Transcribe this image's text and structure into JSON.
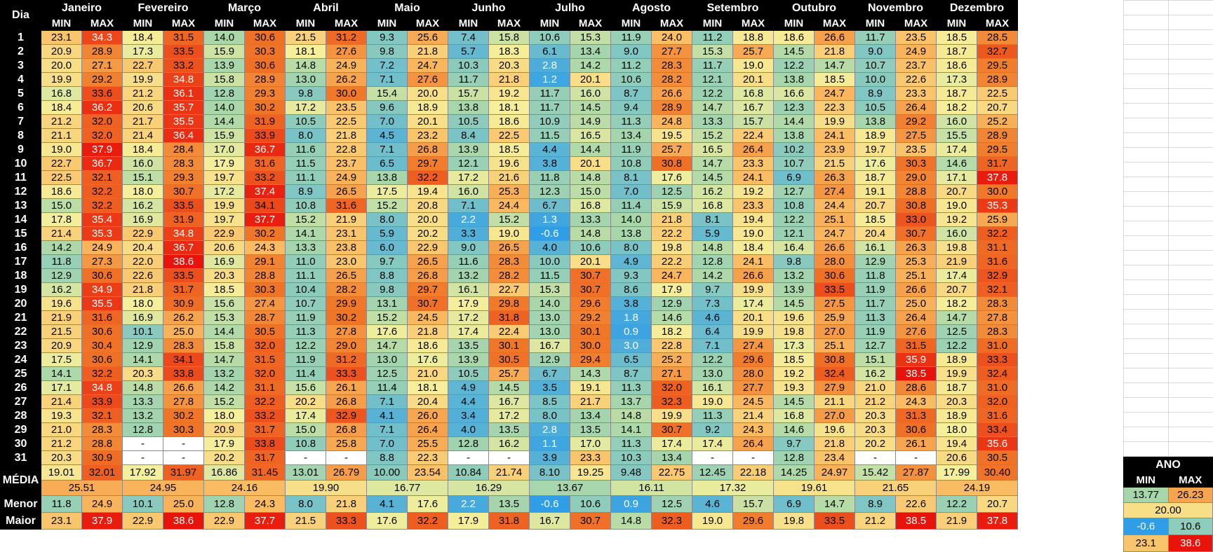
{
  "header": {
    "dia_label": "Dia",
    "months": [
      "Janeiro",
      "Fevereiro",
      "Março",
      "Abril",
      "Maio",
      "Junho",
      "Julho",
      "Agosto",
      "Setembro",
      "Outubro",
      "Novembro",
      "Dezembro"
    ],
    "min_label": "MIN",
    "max_label": "MAX"
  },
  "days": [
    "1",
    "2",
    "3",
    "4",
    "5",
    "6",
    "7",
    "8",
    "9",
    "10",
    "11",
    "12",
    "13",
    "14",
    "15",
    "16",
    "17",
    "18",
    "19",
    "20",
    "21",
    "22",
    "23",
    "24",
    "25",
    "26",
    "27",
    "28",
    "29",
    "30",
    "31"
  ],
  "rows": [
    [
      "23.1",
      "34.3",
      "18.4",
      "31.5",
      "14.0",
      "30.6",
      "21.5",
      "31.2",
      "9.3",
      "25.6",
      "7.4",
      "15.8",
      "10.6",
      "15.3",
      "11.9",
      "24.0",
      "11.2",
      "18.8",
      "18.6",
      "26.6",
      "11.7",
      "23.5",
      "18.5",
      "28.5"
    ],
    [
      "20.9",
      "28.9",
      "17.3",
      "33.5",
      "15.9",
      "30.3",
      "18.1",
      "27.6",
      "9.8",
      "21.8",
      "5.7",
      "18.3",
      "6.1",
      "13.4",
      "9.0",
      "27.7",
      "15.3",
      "25.7",
      "14.5",
      "21.8",
      "9.0",
      "24.9",
      "18.7",
      "32.7"
    ],
    [
      "20.0",
      "27.1",
      "22.7",
      "33.2",
      "13.9",
      "30.6",
      "14.8",
      "24.9",
      "7.2",
      "24.7",
      "10.3",
      "20.3",
      "2.8",
      "14.2",
      "11.2",
      "28.3",
      "11.7",
      "19.0",
      "12.2",
      "14.7",
      "10.7",
      "23.7",
      "18.6",
      "29.5"
    ],
    [
      "19.9",
      "29.2",
      "19.9",
      "34.8",
      "15.8",
      "28.9",
      "13.0",
      "26.2",
      "7.1",
      "27.6",
      "11.7",
      "21.8",
      "1.2",
      "20.1",
      "10.6",
      "28.2",
      "12.1",
      "20.1",
      "13.8",
      "18.5",
      "10.0",
      "22.6",
      "17.3",
      "28.9"
    ],
    [
      "16.8",
      "33.6",
      "21.2",
      "36.1",
      "12.8",
      "29.3",
      "9.8",
      "30.0",
      "15.4",
      "20.0",
      "15.7",
      "19.2",
      "11.7",
      "16.0",
      "8.7",
      "26.6",
      "12.2",
      "16.8",
      "16.6",
      "24.7",
      "8.9",
      "23.3",
      "18.7",
      "22.5"
    ],
    [
      "18.4",
      "36.2",
      "20.6",
      "35.7",
      "14.0",
      "30.2",
      "17.2",
      "23.5",
      "9.6",
      "18.9",
      "13.8",
      "18.1",
      "11.7",
      "14.5",
      "9.4",
      "28.9",
      "14.7",
      "16.7",
      "12.3",
      "22.3",
      "10.5",
      "26.4",
      "18.2",
      "20.7"
    ],
    [
      "21.2",
      "32.0",
      "21.7",
      "35.5",
      "14.4",
      "31.9",
      "10.5",
      "22.5",
      "7.0",
      "20.1",
      "10.5",
      "18.6",
      "10.9",
      "14.9",
      "11.3",
      "24.8",
      "13.3",
      "15.7",
      "14.4",
      "19.9",
      "13.8",
      "29.2",
      "16.0",
      "25.2"
    ],
    [
      "21.1",
      "32.0",
      "21.4",
      "36.4",
      "15.9",
      "33.9",
      "8.0",
      "21.8",
      "4.5",
      "23.2",
      "8.4",
      "22.5",
      "11.5",
      "16.5",
      "13.4",
      "19.5",
      "15.2",
      "22.4",
      "13.8",
      "24.1",
      "18.9",
      "27.5",
      "15.5",
      "28.9"
    ],
    [
      "19.0",
      "37.9",
      "18.4",
      "28.4",
      "17.0",
      "36.7",
      "11.6",
      "22.8",
      "7.1",
      "26.8",
      "13.9",
      "18.5",
      "4.4",
      "14.4",
      "11.9",
      "25.7",
      "16.5",
      "26.4",
      "10.2",
      "23.9",
      "19.7",
      "23.5",
      "17.4",
      "29.5"
    ],
    [
      "22.7",
      "36.7",
      "16.0",
      "28.3",
      "17.9",
      "31.6",
      "11.5",
      "23.7",
      "6.5",
      "29.7",
      "12.1",
      "19.6",
      "3.8",
      "20.1",
      "10.8",
      "30.8",
      "14.7",
      "23.3",
      "10.7",
      "21.5",
      "17.6",
      "30.3",
      "14.6",
      "31.7"
    ],
    [
      "22.5",
      "32.1",
      "15.1",
      "29.3",
      "19.7",
      "33.2",
      "11.1",
      "24.9",
      "13.8",
      "32.2",
      "17.2",
      "21.6",
      "11.8",
      "14.8",
      "8.1",
      "17.6",
      "14.5",
      "24.1",
      "6.9",
      "26.3",
      "18.7",
      "29.0",
      "17.1",
      "37.8"
    ],
    [
      "18.6",
      "32.2",
      "18.0",
      "30.7",
      "17.2",
      "37.4",
      "8.9",
      "26.5",
      "17.5",
      "19.4",
      "16.0",
      "25.3",
      "12.3",
      "15.0",
      "7.0",
      "12.5",
      "16.2",
      "19.2",
      "12.7",
      "27.4",
      "19.1",
      "28.8",
      "20.7",
      "30.0"
    ],
    [
      "15.0",
      "32.2",
      "16.2",
      "33.5",
      "19.9",
      "34.1",
      "10.8",
      "31.6",
      "15.2",
      "20.8",
      "7.1",
      "24.4",
      "6.7",
      "16.8",
      "11.4",
      "15.9",
      "16.8",
      "23.3",
      "10.8",
      "24.4",
      "20.7",
      "30.8",
      "19.0",
      "35.3"
    ],
    [
      "17.8",
      "35.4",
      "16.9",
      "31.9",
      "19.7",
      "37.7",
      "15.2",
      "21.9",
      "8.0",
      "20.0",
      "2.2",
      "15.2",
      "1.3",
      "13.3",
      "14.0",
      "21.8",
      "8.1",
      "19.4",
      "12.2",
      "25.1",
      "18.5",
      "33.0",
      "19.2",
      "25.9"
    ],
    [
      "21.4",
      "35.3",
      "22.9",
      "34.8",
      "22.9",
      "30.2",
      "14.1",
      "23.1",
      "5.9",
      "20.2",
      "3.3",
      "19.0",
      "-0.6",
      "14.8",
      "13.8",
      "22.2",
      "5.9",
      "19.0",
      "12.1",
      "24.7",
      "20.4",
      "30.7",
      "16.0",
      "32.2"
    ],
    [
      "14.2",
      "24.9",
      "20.4",
      "36.7",
      "20.6",
      "24.3",
      "13.3",
      "23.8",
      "6.0",
      "22.9",
      "9.0",
      "26.5",
      "4.0",
      "10.6",
      "8.0",
      "19.8",
      "14.8",
      "18.4",
      "16.4",
      "26.6",
      "16.1",
      "26.3",
      "19.8",
      "31.1"
    ],
    [
      "11.8",
      "27.3",
      "22.0",
      "38.6",
      "16.9",
      "29.1",
      "11.0",
      "23.0",
      "9.7",
      "26.5",
      "11.6",
      "28.3",
      "10.0",
      "20.1",
      "4.9",
      "22.2",
      "12.8",
      "24.1",
      "9.8",
      "28.0",
      "12.9",
      "25.3",
      "21.9",
      "31.6"
    ],
    [
      "12.9",
      "30.6",
      "22.6",
      "33.5",
      "20.3",
      "28.8",
      "11.1",
      "26.5",
      "8.8",
      "26.8",
      "13.2",
      "28.2",
      "11.5",
      "30.7",
      "9.3",
      "24.7",
      "14.2",
      "26.6",
      "13.2",
      "30.6",
      "11.8",
      "25.1",
      "17.4",
      "32.9"
    ],
    [
      "16.2",
      "34.9",
      "21.8",
      "31.7",
      "18.5",
      "30.3",
      "10.4",
      "28.2",
      "9.8",
      "29.7",
      "16.1",
      "22.7",
      "15.3",
      "30.7",
      "8.6",
      "17.9",
      "9.7",
      "19.9",
      "13.9",
      "33.5",
      "11.9",
      "26.6",
      "20.7",
      "32.1"
    ],
    [
      "19.6",
      "35.5",
      "18.0",
      "30.9",
      "15.6",
      "27.4",
      "10.7",
      "29.9",
      "13.1",
      "30.7",
      "17.9",
      "29.8",
      "14.0",
      "29.6",
      "3.8",
      "12.9",
      "7.3",
      "17.4",
      "14.5",
      "27.5",
      "11.7",
      "25.0",
      "18.2",
      "28.3"
    ],
    [
      "21.9",
      "31.6",
      "16.9",
      "26.2",
      "15.3",
      "28.7",
      "11.9",
      "30.2",
      "15.2",
      "24.5",
      "17.2",
      "31.8",
      "13.0",
      "29.2",
      "1.8",
      "14.6",
      "4.6",
      "20.1",
      "19.6",
      "25.9",
      "11.3",
      "26.4",
      "14.7",
      "27.8"
    ],
    [
      "21.5",
      "30.6",
      "10.1",
      "25.0",
      "14.4",
      "30.5",
      "11.3",
      "27.8",
      "17.6",
      "21.8",
      "17.4",
      "22.4",
      "13.0",
      "30.1",
      "0.9",
      "18.2",
      "6.4",
      "19.9",
      "19.8",
      "27.0",
      "11.9",
      "27.6",
      "12.5",
      "28.3"
    ],
    [
      "20.9",
      "30.4",
      "12.9",
      "28.3",
      "15.8",
      "32.0",
      "12.2",
      "29.0",
      "14.7",
      "18.6",
      "13.5",
      "30.1",
      "16.7",
      "30.0",
      "3.0",
      "22.8",
      "7.1",
      "27.4",
      "17.3",
      "25.1",
      "12.7",
      "31.5",
      "12.2",
      "31.0"
    ],
    [
      "17.5",
      "30.6",
      "14.1",
      "34.1",
      "14.7",
      "31.5",
      "11.9",
      "31.2",
      "13.0",
      "17.6",
      "13.9",
      "30.5",
      "12.9",
      "29.4",
      "6.5",
      "25.2",
      "12.2",
      "29.6",
      "18.5",
      "30.8",
      "15.1",
      "35.9",
      "18.9",
      "33.3"
    ],
    [
      "14.1",
      "32.2",
      "20.3",
      "33.8",
      "13.2",
      "32.0",
      "11.4",
      "33.3",
      "12.5",
      "21.0",
      "10.5",
      "25.7",
      "6.7",
      "14.3",
      "8.7",
      "27.1",
      "13.0",
      "28.0",
      "19.2",
      "32.4",
      "16.2",
      "38.5",
      "19.9",
      "32.4"
    ],
    [
      "17.1",
      "34.8",
      "14.8",
      "26.6",
      "14.2",
      "31.1",
      "15.6",
      "26.1",
      "11.4",
      "18.1",
      "4.9",
      "14.5",
      "3.5",
      "19.1",
      "11.3",
      "32.0",
      "16.1",
      "27.7",
      "19.3",
      "27.9",
      "21.0",
      "28.6",
      "18.7",
      "31.0"
    ],
    [
      "21.4",
      "33.9",
      "13.3",
      "27.8",
      "15.2",
      "32.2",
      "20.2",
      "26.8",
      "7.1",
      "20.4",
      "4.4",
      "16.7",
      "8.5",
      "21.7",
      "13.7",
      "32.3",
      "19.0",
      "24.5",
      "14.5",
      "21.1",
      "21.2",
      "24.3",
      "20.3",
      "32.0"
    ],
    [
      "19.3",
      "32.1",
      "13.2",
      "30.2",
      "18.0",
      "33.2",
      "17.4",
      "32.9",
      "4.1",
      "26.0",
      "3.4",
      "17.2",
      "8.0",
      "13.4",
      "14.8",
      "19.9",
      "11.3",
      "21.4",
      "16.8",
      "27.0",
      "20.3",
      "31.3",
      "18.9",
      "31.6"
    ],
    [
      "21.0",
      "28.3",
      "12.8",
      "30.3",
      "20.9",
      "31.7",
      "15.0",
      "26.8",
      "7.1",
      "26.4",
      "4.0",
      "13.5",
      "2.8",
      "13.5",
      "14.1",
      "30.7",
      "9.2",
      "24.3",
      "14.6",
      "19.6",
      "20.3",
      "30.6",
      "18.0",
      "33.4"
    ],
    [
      "21.2",
      "28.8",
      "-",
      "-",
      "17.9",
      "33.8",
      "10.8",
      "25.8",
      "7.0",
      "25.5",
      "12.8",
      "16.2",
      "1.1",
      "17.0",
      "11.3",
      "17.4",
      "17.4",
      "26.4",
      "9.7",
      "21.8",
      "20.2",
      "26.1",
      "19.4",
      "35.6"
    ],
    [
      "20.3",
      "30.9",
      "-",
      "-",
      "20.2",
      "31.7",
      "-",
      "-",
      "8.8",
      "22.3",
      "-",
      "-",
      "3.9",
      "23.3",
      "10.3",
      "13.4",
      "-",
      "-",
      "12.8",
      "23.4",
      "-",
      "-",
      "20.6",
      "30.5"
    ]
  ],
  "summary": {
    "media_label": "MÉDIA",
    "menor_label": "Menor",
    "maior_label": "Maior",
    "media": [
      "19.01",
      "32.01",
      "17.92",
      "31.97",
      "16.86",
      "31.45",
      "13.01",
      "26.79",
      "10.00",
      "23.54",
      "10.84",
      "21.74",
      "8.10",
      "19.25",
      "9.48",
      "22.75",
      "12.45",
      "22.18",
      "14.25",
      "24.97",
      "15.42",
      "27.87",
      "17.99",
      "30.40"
    ],
    "media_month": [
      "25.51",
      "24.95",
      "24.16",
      "19.90",
      "16.77",
      "16.29",
      "13.67",
      "16.11",
      "17.32",
      "19.61",
      "21.65",
      "24.19"
    ],
    "menor": [
      "11.8",
      "24.9",
      "10.1",
      "25.0",
      "12.8",
      "24.3",
      "8.0",
      "21.8",
      "4.1",
      "17.6",
      "2.2",
      "13.5",
      "-0.6",
      "10.6",
      "0.9",
      "12.5",
      "4.6",
      "15.7",
      "6.9",
      "14.7",
      "8.9",
      "22.6",
      "12.2",
      "20.7"
    ],
    "maior": [
      "23.1",
      "37.9",
      "22.9",
      "38.6",
      "22.9",
      "37.7",
      "21.5",
      "33.3",
      "17.6",
      "32.2",
      "17.9",
      "31.8",
      "16.7",
      "30.7",
      "14.8",
      "32.3",
      "19.0",
      "29.6",
      "19.8",
      "33.5",
      "21.2",
      "38.5",
      "21.9",
      "37.8"
    ]
  },
  "ano": {
    "label": "ANO",
    "min_label": "MIN",
    "max_label": "MAX",
    "media_min": "13.77",
    "media_max": "26.23",
    "media": "20.00",
    "menor_min": "-0.6",
    "menor_max": "10.6",
    "maior_min": "23.1",
    "maior_max": "38.6"
  },
  "colors": {
    "header_bg": "#000000",
    "header_fg": "#ffffff",
    "scale_min": "#2f9ee6",
    "scale_mid": "#f6ef9a",
    "scale_max": "#e8130b"
  }
}
